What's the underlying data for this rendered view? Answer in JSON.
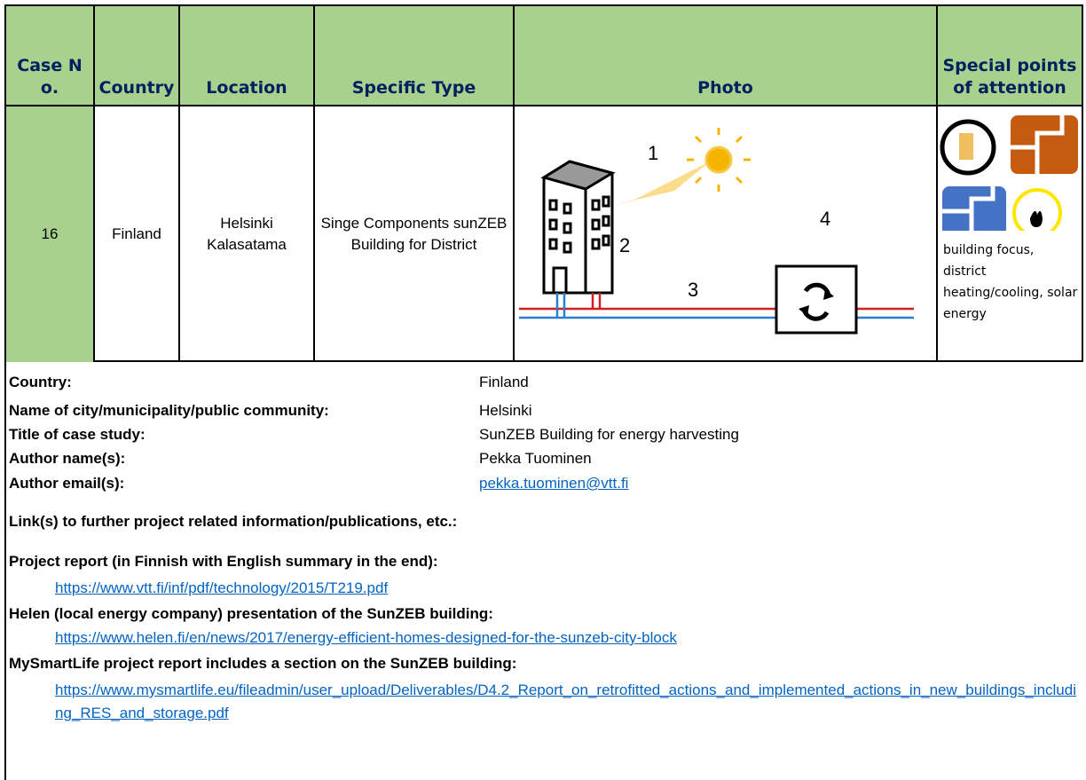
{
  "table": {
    "headers": [
      "Case No.",
      "Country",
      "Location",
      "Specific Type",
      "Photo",
      "Special points of attention"
    ],
    "row": [
      "16",
      "Finland",
      "Helsinki Kalasatama",
      "Singe Components sunZEB Building for District"
    ],
    "photo_labels": [
      "1",
      "2",
      "3",
      "4"
    ],
    "special_text": "building focus, district heating/cooling, solar energy"
  },
  "details": [
    {
      "label": "Country:",
      "value": "Finland"
    },
    {
      "label": "Name of city/municipality/public community:",
      "value": "Helsinki"
    },
    {
      "label": "Title of case study:",
      "value": "SunZEB Building for energy harvesting"
    },
    {
      "label": "Author name(s):",
      "value": "Pekka Tuominen"
    },
    {
      "label": "Author email(s):",
      "value": "pekka.tuominen@vtt.fi"
    }
  ],
  "links": {
    "heading": "Link(s) to further project related information/publications, etc.:",
    "items": [
      {
        "title": "Project report (in Finnish with English summary in the end):",
        "url": "https://www.vtt.fi/inf/pdf/technology/2015/T219.pdf"
      },
      {
        "title": "Helen (local energy company) presentation of the SunZEB building:",
        "url": "https://www.helen.fi/en/news/2017/energy-efficient-homes-designed-for-the-sunzeb-city-block"
      },
      {
        "title": "MySmartLife project report includes a section on the SunZEB building:",
        "url": "https://www.mysmartlife.eu/fileadmin/user_upload/Deliverables/D4.2_Report_on_retrofitted_actions_and_implemented_actions_in_new_buildings_including_RES_and_storage.pdf"
      }
    ]
  }
}
